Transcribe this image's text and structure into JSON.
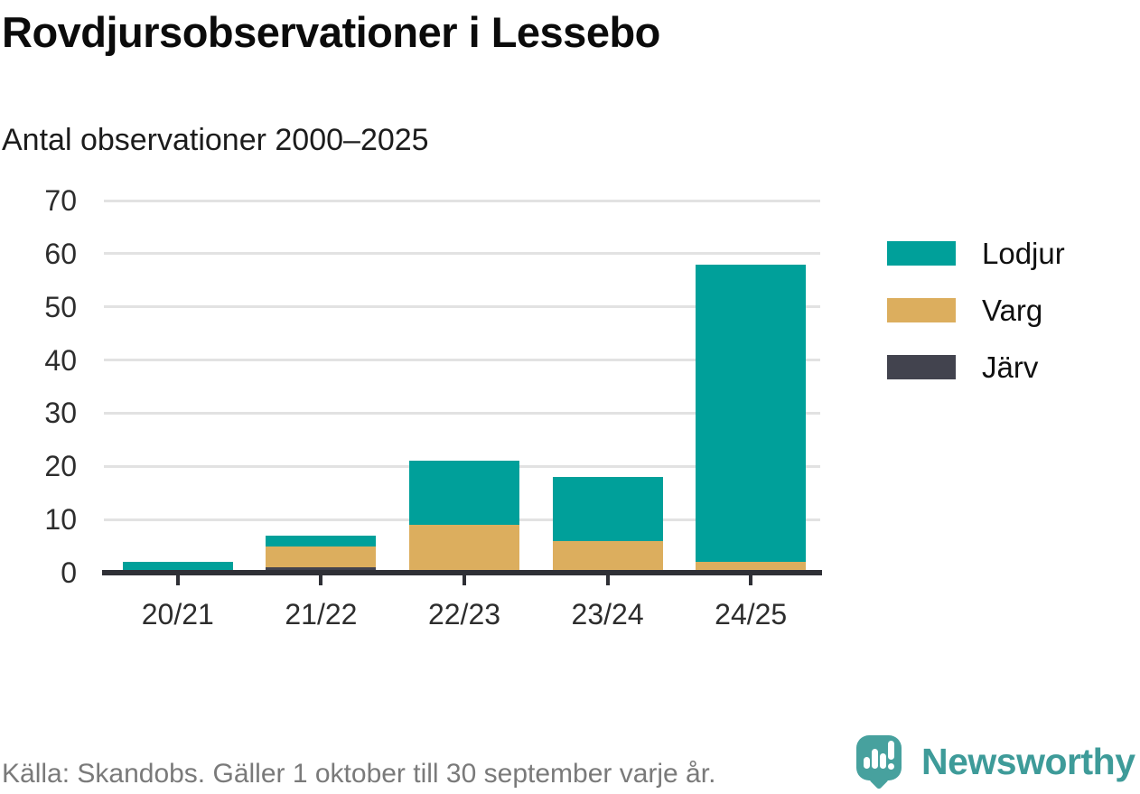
{
  "title": "Rovdjursobservationer i Lessebo",
  "subtitle": "Antal observationer 2000–2025",
  "footer": {
    "source": "Källa: Skandobs. Gäller 1 oktober till 30 september varje år.",
    "brand": "Newsworthy"
  },
  "colors": {
    "lodjur": "#00A09A",
    "varg": "#DCAE5E",
    "jarv": "#42434E",
    "axis": "#2F3036",
    "grid": "#E2E2E2",
    "tick_text": "#2D2D2D",
    "brand_teal": "#3E9B99",
    "logo_bubble": "#47A19E",
    "footer_gray": "#7A7A7A"
  },
  "icons": {
    "logo": "newsworthy-bubble-barchart-icon"
  },
  "chart_data": {
    "type": "bar",
    "variant": "stacked-vertical",
    "title": "Rovdjursobservationer i Lessebo",
    "subtitle": "Antal observationer 2000–2025",
    "categories": [
      "20/21",
      "21/22",
      "22/23",
      "23/24",
      "24/25"
    ],
    "series": [
      {
        "name": "Lodjur",
        "color": "#00A09A",
        "values": [
          2,
          2,
          12,
          12,
          56
        ]
      },
      {
        "name": "Varg",
        "color": "#DCAE5E",
        "values": [
          0,
          4,
          9,
          6,
          2
        ]
      },
      {
        "name": "Järv",
        "color": "#42434E",
        "values": [
          0,
          1,
          0,
          0,
          0
        ]
      }
    ],
    "stack_order_bottom_to_top": [
      "Järv",
      "Varg",
      "Lodjur"
    ],
    "totals": [
      2,
      7,
      21,
      18,
      58
    ],
    "xlabel": "",
    "ylabel": "",
    "ylim": [
      0,
      70
    ],
    "y_ticks": [
      0,
      10,
      20,
      30,
      40,
      50,
      60,
      70
    ],
    "grid": "horizontal",
    "legend_position": "right"
  }
}
